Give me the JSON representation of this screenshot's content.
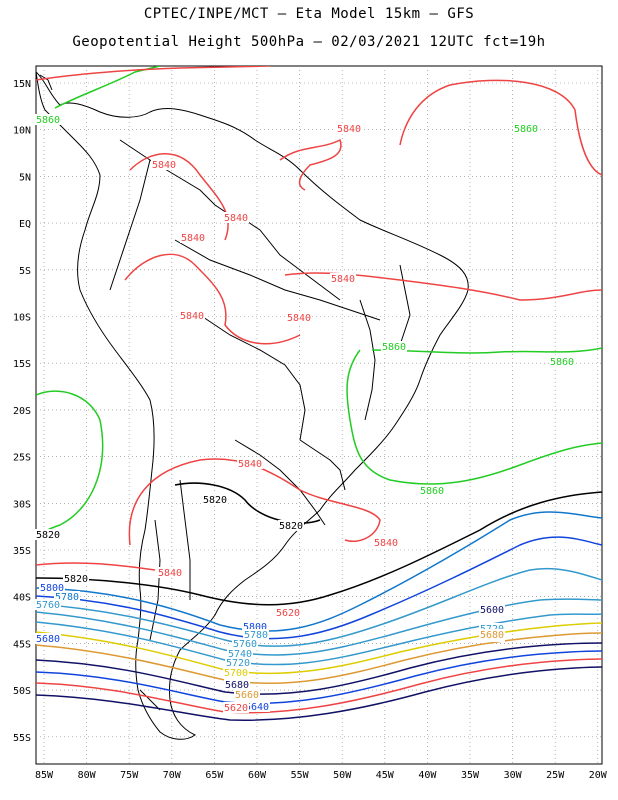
{
  "title_line1": "CPTEC/INPE/MCT –  Eta Model 15km – GFS",
  "title_line2": "Geopotential Height 500hPa – 02/03/2021 12UTC fct=19h",
  "map": {
    "lat_ticks": [
      "15N",
      "10N",
      "5N",
      "EQ",
      "5S",
      "10S",
      "15S",
      "20S",
      "25S",
      "30S",
      "35S",
      "40S",
      "45S",
      "50S",
      "55S"
    ],
    "lon_ticks": [
      "85W",
      "80W",
      "75W",
      "70W",
      "65W",
      "60W",
      "55W",
      "50W",
      "45W",
      "40W",
      "35W",
      "30W",
      "25W",
      "20W"
    ],
    "contour_labels": [
      {
        "text": "5860",
        "color": "#22cc22"
      },
      {
        "text": "5840",
        "color": "#ee4444"
      },
      {
        "text": "5840",
        "color": "#ee4444"
      },
      {
        "text": "5840",
        "color": "#ee4444"
      },
      {
        "text": "5840",
        "color": "#ee4444"
      },
      {
        "text": "5840",
        "color": "#ee4444"
      },
      {
        "text": "5840",
        "color": "#ee4444"
      },
      {
        "text": "5840",
        "color": "#ee4444"
      },
      {
        "text": "5840",
        "color": "#ee4444"
      },
      {
        "text": "5840",
        "color": "#ee4444"
      },
      {
        "text": "5840",
        "color": "#ee4444"
      },
      {
        "text": "5860",
        "color": "#22cc22"
      },
      {
        "text": "5860",
        "color": "#22cc22"
      },
      {
        "text": "5860",
        "color": "#22cc22"
      },
      {
        "text": "5860",
        "color": "#22cc22"
      },
      {
        "text": "5820",
        "color": "#000000"
      },
      {
        "text": "5820",
        "color": "#000000"
      },
      {
        "text": "5820",
        "color": "#000000"
      },
      {
        "text": "5820",
        "color": "#000000"
      },
      {
        "text": "5800",
        "color": "#1144dd"
      },
      {
        "text": "5780",
        "color": "#1177cc"
      },
      {
        "text": "5760",
        "color": "#3399cc"
      },
      {
        "text": "5680",
        "color": "#1144dd"
      },
      {
        "text": "5800",
        "color": "#1144dd"
      },
      {
        "text": "5780",
        "color": "#3399cc"
      },
      {
        "text": "5760",
        "color": "#3399cc"
      },
      {
        "text": "5740",
        "color": "#3399cc"
      },
      {
        "text": "5720",
        "color": "#3399cc"
      },
      {
        "text": "5700",
        "color": "#ddcc00"
      },
      {
        "text": "5680",
        "color": "#111166"
      },
      {
        "text": "5660",
        "color": "#dd9933"
      },
      {
        "text": "5640",
        "color": "#1144dd"
      },
      {
        "text": "5620",
        "color": "#ee4444"
      },
      {
        "text": "5600",
        "color": "#111166"
      },
      {
        "text": "5720",
        "color": "#3399cc"
      },
      {
        "text": "5700",
        "color": "#ddcc00"
      },
      {
        "text": "5680",
        "color": "#dd9933"
      },
      {
        "text": "5620",
        "color": "#ee4444"
      }
    ],
    "colors": {
      "c5860": "#22cc22",
      "c5840": "#ee4444",
      "c5820": "#000000",
      "c5800": "#1144dd",
      "c5780": "#1177cc",
      "c5760": "#3399cc",
      "c5740": "#3399cc",
      "c5720": "#3399cc",
      "c5700": "#ddcc00",
      "c5680": "#dd9933",
      "c5660": "#dd9933",
      "c5640": "#1144dd",
      "c5620": "#ee4444",
      "c5600": "#111166",
      "coast": "#000000",
      "grid": "#888888"
    }
  }
}
